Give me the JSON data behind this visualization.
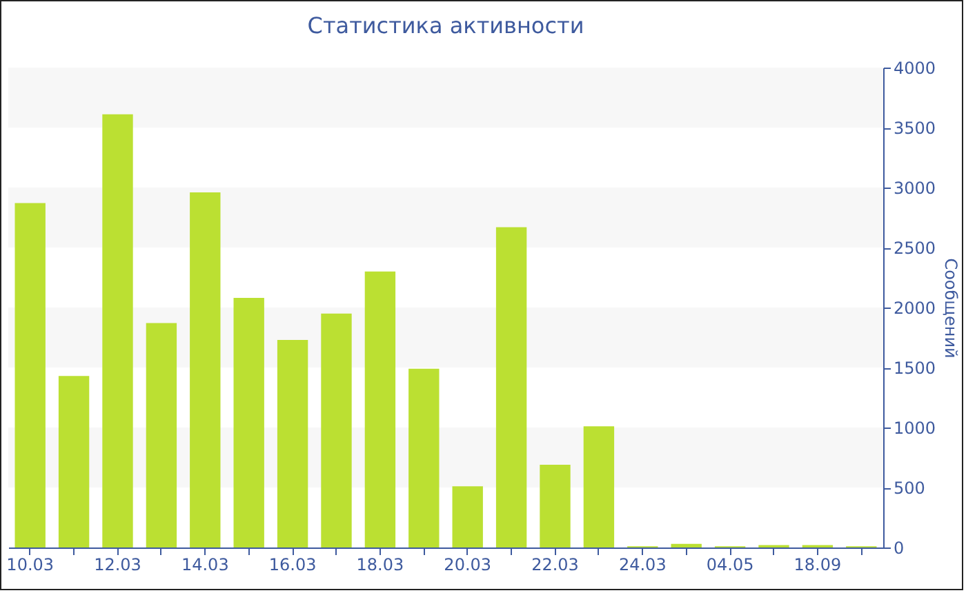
{
  "chart_data": {
    "type": "bar",
    "title": "Статистика активности",
    "ylabel": "Сообщений",
    "categories": [
      "10.03",
      null,
      "12.03",
      null,
      "14.03",
      null,
      "16.03",
      null,
      "18.03",
      null,
      "20.03",
      null,
      "22.03",
      null,
      "24.03",
      null,
      "04.05",
      null,
      "18.09",
      null
    ],
    "values": [
      2870,
      1430,
      3610,
      1870,
      2960,
      2080,
      1730,
      1950,
      2300,
      1490,
      510,
      2670,
      690,
      1010,
      10,
      30,
      10,
      20,
      20,
      10
    ],
    "color": "#bbe032",
    "ylim": [
      0,
      4000
    ],
    "yticks": [
      0,
      500,
      1000,
      1500,
      2000,
      2500,
      3000,
      3500,
      4000
    ],
    "bands": [
      {
        "axis": "y",
        "from": 500,
        "to": 1000,
        "color": "#f7f7f7"
      },
      {
        "axis": "y",
        "from": 1500,
        "to": 2000,
        "color": "#f7f7f7"
      },
      {
        "axis": "y",
        "from": 2500,
        "to": 3000,
        "color": "#f7f7f7"
      },
      {
        "axis": "y",
        "from": 3500,
        "to": 4000,
        "color": "#f7f7f7"
      }
    ]
  }
}
